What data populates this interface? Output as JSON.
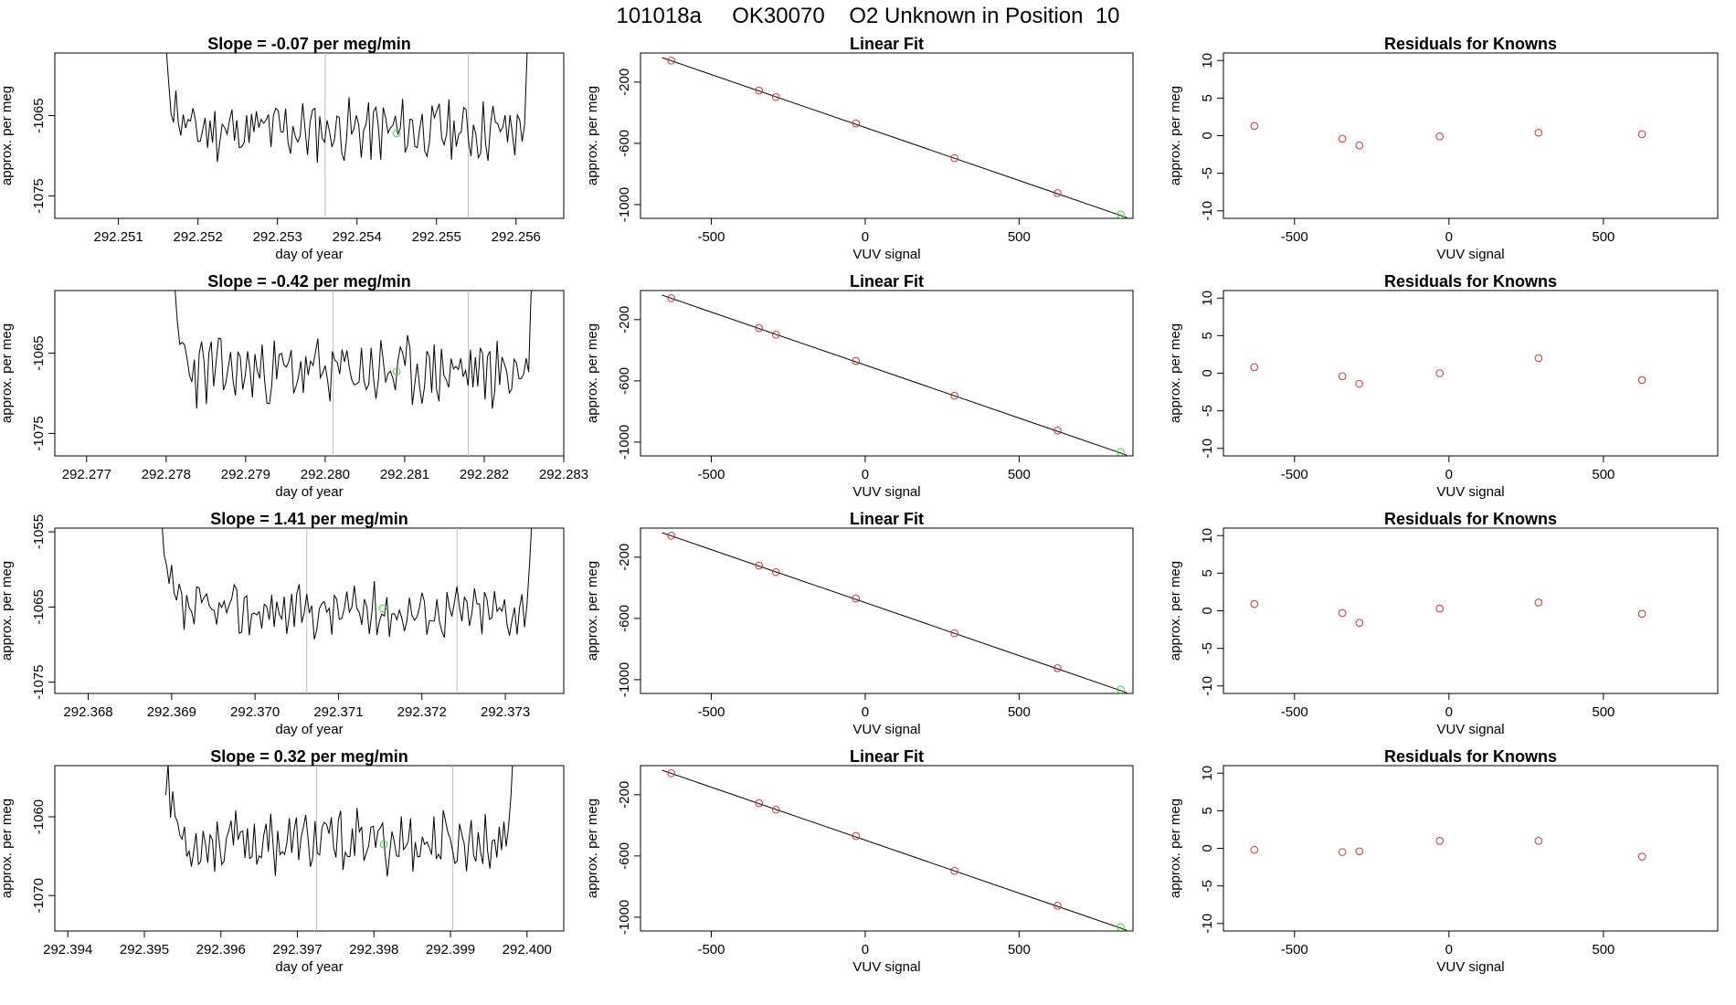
{
  "page": {
    "title": "101018a     OK30070    O2 Unknown in Position  10"
  },
  "colors": {
    "known": "#d03030",
    "unknown": "#33dd33",
    "line": "#000000",
    "vline": "#bbbbbb"
  },
  "chart_data": [
    {
      "row": 0,
      "type": "line",
      "title": "Slope =  -0.07  per meg/min",
      "xlabel": "day of year",
      "ylabel": "approx. per meg",
      "xlim": [
        292.2502,
        292.2566
      ],
      "ylim": [
        -1077.8,
        -1057.2
      ],
      "xticks": [
        292.251,
        292.252,
        292.253,
        292.254,
        292.255,
        292.256
      ],
      "xtick_labels": [
        "292.251",
        "292.252",
        "292.253",
        "292.254",
        "292.255",
        "292.256"
      ],
      "yticks": [
        -1075,
        -1065
      ],
      "ytick_labels": [
        "-1075",
        "-1065"
      ],
      "vlines": [
        292.2536,
        292.2554
      ],
      "series": {
        "x_start": 292.2516,
        "x_end": 292.2562,
        "baseline": -1066.8,
        "amp": 3.2,
        "start_high": -1059,
        "end_high": -1057,
        "seed": 11
      },
      "unknown_point": {
        "x": 292.2545,
        "y": -1067.2
      }
    },
    {
      "row": 0,
      "type": "scatter",
      "title": "Linear Fit",
      "xlabel": "VUV signal",
      "ylabel": "approx. per meg",
      "xlim": [
        -730,
        870
      ],
      "ylim": [
        -1090,
        -10
      ],
      "xticks": [
        -500,
        0,
        500
      ],
      "xtick_labels": [
        "-500",
        "0",
        "500"
      ],
      "yticks": [
        -1000,
        -600,
        -200
      ],
      "ytick_labels": [
        "-1000",
        "-600",
        "-200"
      ],
      "fit_line": {
        "x0": -660,
        "y0": -40,
        "x1": 850,
        "y1": -1085
      },
      "known_points": [
        {
          "x": -630,
          "y": -60
        },
        {
          "x": -345,
          "y": -255
        },
        {
          "x": -290,
          "y": -298
        },
        {
          "x": -30,
          "y": -470
        },
        {
          "x": 290,
          "y": -697
        },
        {
          "x": 625,
          "y": -925
        }
      ],
      "unknown_point": {
        "x": 830,
        "y": -1065
      }
    },
    {
      "row": 0,
      "type": "scatter",
      "title": "Residuals for Knowns",
      "xlabel": "VUV signal",
      "ylabel": "approx. per meg",
      "xlim": [
        -730,
        870
      ],
      "ylim": [
        -11,
        11
      ],
      "xticks": [
        -500,
        0,
        500
      ],
      "xtick_labels": [
        "-500",
        "0",
        "500"
      ],
      "yticks": [
        -10,
        -5,
        0,
        5,
        10
      ],
      "ytick_labels": [
        "-10",
        "-5",
        "0",
        "5",
        "10"
      ],
      "points": [
        {
          "x": -630,
          "y": 1.3
        },
        {
          "x": -345,
          "y": -0.4
        },
        {
          "x": -290,
          "y": -1.3
        },
        {
          "x": -30,
          "y": -0.1
        },
        {
          "x": 290,
          "y": 0.4
        },
        {
          "x": 625,
          "y": 0.2
        }
      ]
    },
    {
      "row": 1,
      "type": "line",
      "title": "Slope =  -0.42  per meg/min",
      "xlabel": "day of year",
      "ylabel": "approx. per meg",
      "xlim": [
        292.2766,
        292.283
      ],
      "ylim": [
        -1077.8,
        -1057.2
      ],
      "xticks": [
        292.277,
        292.278,
        292.279,
        292.28,
        292.281,
        292.282,
        292.283
      ],
      "xtick_labels": [
        "292.277",
        "292.278",
        "292.279",
        "292.280",
        "292.281",
        "292.282",
        "292.283"
      ],
      "yticks": [
        -1075,
        -1065
      ],
      "ytick_labels": [
        "-1075",
        "-1065"
      ],
      "vlines": [
        292.2801,
        292.2818
      ],
      "series": {
        "x_start": 292.27808,
        "x_end": 292.28265,
        "baseline": -1067.3,
        "amp": 3.6,
        "start_high": -1059,
        "end_high": -1057,
        "seed": 23
      },
      "unknown_point": {
        "x": 292.2809,
        "y": -1067.3
      }
    },
    {
      "row": 1,
      "type": "scatter",
      "title": "Linear Fit",
      "xlabel": "VUV signal",
      "ylabel": "approx. per meg",
      "xlim": [
        -730,
        870
      ],
      "ylim": [
        -1090,
        -10
      ],
      "xticks": [
        -500,
        0,
        500
      ],
      "xtick_labels": [
        "-500",
        "0",
        "500"
      ],
      "yticks": [
        -1000,
        -600,
        -200
      ],
      "ytick_labels": [
        "-1000",
        "-600",
        "-200"
      ],
      "fit_line": {
        "x0": -660,
        "y0": -40,
        "x1": 850,
        "y1": -1085
      },
      "known_points": [
        {
          "x": -630,
          "y": -60
        },
        {
          "x": -345,
          "y": -255
        },
        {
          "x": -290,
          "y": -298
        },
        {
          "x": -30,
          "y": -470
        },
        {
          "x": 290,
          "y": -697
        },
        {
          "x": 625,
          "y": -925
        }
      ],
      "unknown_point": {
        "x": 830,
        "y": -1065
      }
    },
    {
      "row": 1,
      "type": "scatter",
      "title": "Residuals for Knowns",
      "xlabel": "VUV signal",
      "ylabel": "approx. per meg",
      "xlim": [
        -730,
        870
      ],
      "ylim": [
        -11,
        11
      ],
      "xticks": [
        -500,
        0,
        500
      ],
      "xtick_labels": [
        "-500",
        "0",
        "500"
      ],
      "yticks": [
        -10,
        -5,
        0,
        5,
        10
      ],
      "ytick_labels": [
        "-10",
        "-5",
        "0",
        "5",
        "10"
      ],
      "points": [
        {
          "x": -630,
          "y": 0.8
        },
        {
          "x": -345,
          "y": -0.4
        },
        {
          "x": -290,
          "y": -1.4
        },
        {
          "x": -30,
          "y": 0.0
        },
        {
          "x": 290,
          "y": 2.0
        },
        {
          "x": 625,
          "y": -0.9
        }
      ]
    },
    {
      "row": 2,
      "type": "line",
      "title": "Slope =  1.41  per meg/min",
      "xlabel": "day of year",
      "ylabel": "approx. per meg",
      "xlim": [
        292.3676,
        292.3737
      ],
      "ylim": [
        -1076.5,
        -1054.5
      ],
      "xticks": [
        292.368,
        292.369,
        292.37,
        292.371,
        292.372,
        292.373
      ],
      "xtick_labels": [
        "292.368",
        "292.369",
        "292.370",
        "292.371",
        "292.372",
        "292.373"
      ],
      "yticks": [
        -1075,
        -1065,
        -1055
      ],
      "ytick_labels": [
        "-1075",
        "-1065",
        "-1055"
      ],
      "vlines": [
        292.37062,
        292.37242
      ],
      "series": {
        "x_start": 292.36885,
        "x_end": 292.37335,
        "baseline": -1065.5,
        "amp": 3.0,
        "start_high": -1055,
        "end_high": -1054.5,
        "seed": 37
      },
      "unknown_point": {
        "x": 292.37153,
        "y": -1065.2
      }
    },
    {
      "row": 2,
      "type": "scatter",
      "title": "Linear Fit",
      "xlabel": "VUV signal",
      "ylabel": "approx. per meg",
      "xlim": [
        -730,
        870
      ],
      "ylim": [
        -1090,
        -10
      ],
      "xticks": [
        -500,
        0,
        500
      ],
      "xtick_labels": [
        "-500",
        "0",
        "500"
      ],
      "yticks": [
        -1000,
        -600,
        -200
      ],
      "ytick_labels": [
        "-1000",
        "-600",
        "-200"
      ],
      "fit_line": {
        "x0": -660,
        "y0": -40,
        "x1": 850,
        "y1": -1085
      },
      "known_points": [
        {
          "x": -630,
          "y": -60
        },
        {
          "x": -345,
          "y": -255
        },
        {
          "x": -290,
          "y": -298
        },
        {
          "x": -30,
          "y": -470
        },
        {
          "x": 290,
          "y": -697
        },
        {
          "x": 625,
          "y": -925
        }
      ],
      "unknown_point": {
        "x": 830,
        "y": -1065
      }
    },
    {
      "row": 2,
      "type": "scatter",
      "title": "Residuals for Knowns",
      "xlabel": "VUV signal",
      "ylabel": "approx. per meg",
      "xlim": [
        -730,
        870
      ],
      "ylim": [
        -11,
        11
      ],
      "xticks": [
        -500,
        0,
        500
      ],
      "xtick_labels": [
        "-500",
        "0",
        "500"
      ],
      "yticks": [
        -10,
        -5,
        0,
        5,
        10
      ],
      "ytick_labels": [
        "-10",
        "-5",
        "0",
        "5",
        "10"
      ],
      "points": [
        {
          "x": -630,
          "y": 0.9
        },
        {
          "x": -345,
          "y": -0.3
        },
        {
          "x": -290,
          "y": -1.6
        },
        {
          "x": -30,
          "y": 0.3
        },
        {
          "x": 290,
          "y": 1.1
        },
        {
          "x": 625,
          "y": -0.4
        }
      ]
    },
    {
      "row": 3,
      "type": "line",
      "title": "Slope =  0.32  per meg/min",
      "xlabel": "day of year",
      "ylabel": "approx. per meg",
      "xlim": [
        292.39383,
        292.40048
      ],
      "ylim": [
        -1074.5,
        -1053.5
      ],
      "xticks": [
        292.394,
        292.395,
        292.396,
        292.397,
        292.398,
        292.399,
        292.4
      ],
      "xtick_labels": [
        "292.394",
        "292.395",
        "292.396",
        "292.397",
        "292.398",
        "292.399",
        "292.400"
      ],
      "yticks": [
        -1070,
        -1060
      ],
      "ytick_labels": [
        "-1070",
        "-1060"
      ],
      "vlines": [
        292.39725,
        292.39903
      ],
      "series": {
        "x_start": 292.39528,
        "x_end": 292.39985,
        "baseline": -1063.2,
        "amp": 3.3,
        "start_high": -1054,
        "end_high": -1053.5,
        "seed": 53
      },
      "unknown_point": {
        "x": 292.39813,
        "y": -1063.5
      }
    },
    {
      "row": 3,
      "type": "scatter",
      "title": "Linear Fit",
      "xlabel": "VUV signal",
      "ylabel": "approx. per meg",
      "xlim": [
        -730,
        870
      ],
      "ylim": [
        -1090,
        -10
      ],
      "xticks": [
        -500,
        0,
        500
      ],
      "xtick_labels": [
        "-500",
        "0",
        "500"
      ],
      "yticks": [
        -1000,
        -600,
        -200
      ],
      "ytick_labels": [
        "-1000",
        "-600",
        "-200"
      ],
      "fit_line": {
        "x0": -660,
        "y0": -40,
        "x1": 850,
        "y1": -1085
      },
      "known_points": [
        {
          "x": -630,
          "y": -60
        },
        {
          "x": -345,
          "y": -255
        },
        {
          "x": -290,
          "y": -298
        },
        {
          "x": -30,
          "y": -470
        },
        {
          "x": 290,
          "y": -697
        },
        {
          "x": 625,
          "y": -925
        }
      ],
      "unknown_point": {
        "x": 830,
        "y": -1065
      }
    },
    {
      "row": 3,
      "type": "scatter",
      "title": "Residuals for Knowns",
      "xlabel": "VUV signal",
      "ylabel": "approx. per meg",
      "xlim": [
        -730,
        870
      ],
      "ylim": [
        -11,
        11
      ],
      "xticks": [
        -500,
        0,
        500
      ],
      "xtick_labels": [
        "-500",
        "0",
        "500"
      ],
      "yticks": [
        -10,
        -5,
        0,
        5,
        10
      ],
      "ytick_labels": [
        "-10",
        "-5",
        "0",
        "5",
        "10"
      ],
      "points": [
        {
          "x": -630,
          "y": -0.2
        },
        {
          "x": -345,
          "y": -0.5
        },
        {
          "x": -290,
          "y": -0.4
        },
        {
          "x": -30,
          "y": 1.0
        },
        {
          "x": 290,
          "y": 1.0
        },
        {
          "x": 625,
          "y": -1.1
        }
      ]
    }
  ]
}
